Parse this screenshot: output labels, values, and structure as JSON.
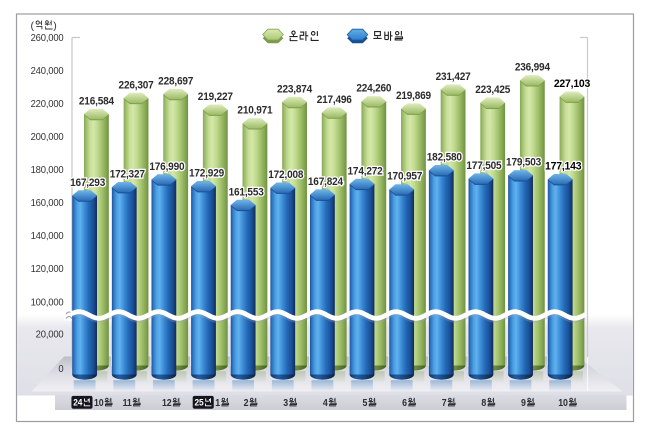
{
  "figure": {
    "border_color": "#9c9ca2",
    "background": "#ffffff"
  },
  "chart_data": {
    "type": "bar",
    "style": "3d-cylinder",
    "unit_label": "(억원)",
    "grid": false,
    "legend": {
      "position": "top-center",
      "items": [
        "온라인",
        "모바일"
      ]
    },
    "y_axis": {
      "tick_values": [
        0,
        20000,
        100000,
        120000,
        140000,
        160000,
        180000,
        200000,
        220000,
        240000,
        260000
      ],
      "axis_break": {
        "between": [
          20000,
          100000
        ]
      },
      "range_top": 260000
    },
    "categories": [
      {
        "year": "24년",
        "month": "10월"
      },
      {
        "month": "11월"
      },
      {
        "month": "12월"
      },
      {
        "year": "25년",
        "month": "1월"
      },
      {
        "month": "2월"
      },
      {
        "month": "3월"
      },
      {
        "month": "4월"
      },
      {
        "month": "5월"
      },
      {
        "month": "6월"
      },
      {
        "month": "7월"
      },
      {
        "month": "8월"
      },
      {
        "month": "9월"
      },
      {
        "month": "10월"
      }
    ],
    "series": [
      {
        "name": "온라인",
        "color": "#aecb77",
        "values": [
          216584,
          226307,
          228697,
          219227,
          210971,
          223874,
          217496,
          224260,
          219869,
          231427,
          223425,
          236994,
          227103
        ]
      },
      {
        "name": "모바일",
        "color": "#2e82d0",
        "values": [
          167293,
          172327,
          176990,
          172929,
          161553,
          172008,
          167824,
          174272,
          170957,
          182580,
          177505,
          179503,
          177143
        ]
      }
    ],
    "emphasized_category_index": 12
  }
}
